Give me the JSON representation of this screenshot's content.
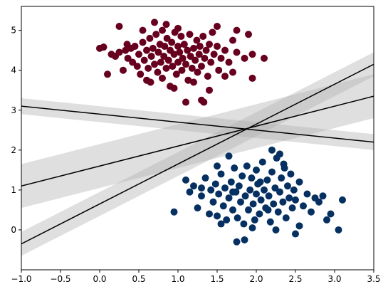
{
  "chart_data": {
    "type": "scatter",
    "title": "",
    "xlabel": "",
    "ylabel": "",
    "xlim": [
      -1.0,
      3.5
    ],
    "ylim": [
      -1.0,
      5.6
    ],
    "x_ticks": [
      -1.0,
      -0.5,
      0.0,
      0.5,
      1.0,
      1.5,
      2.0,
      2.5,
      3.0,
      3.5
    ],
    "x_tick_labels": [
      "−1.0",
      "−0.5",
      "0.0",
      "0.5",
      "1.0",
      "1.5",
      "2.0",
      "2.5",
      "3.0",
      "3.5"
    ],
    "y_ticks": [
      0,
      1,
      2,
      3,
      4,
      5
    ],
    "y_tick_labels": [
      "0",
      "1",
      "2",
      "3",
      "4",
      "5"
    ],
    "grid": false,
    "legend": "none",
    "colors": {
      "cluster_top": "#67001f",
      "cluster_bottom": "#053061",
      "line": "#000000",
      "margin_band": "#b0b0b0"
    },
    "series": [
      {
        "points": [
          [
            0.0,
            4.55
          ],
          [
            0.05,
            4.58
          ],
          [
            0.15,
            4.4
          ],
          [
            0.2,
            4.35
          ],
          [
            0.25,
            4.45
          ],
          [
            0.3,
            4.0
          ],
          [
            0.33,
            4.5
          ],
          [
            0.36,
            4.3
          ],
          [
            0.4,
            4.55
          ],
          [
            0.42,
            4.2
          ],
          [
            0.45,
            4.6
          ],
          [
            0.48,
            4.1
          ],
          [
            0.5,
            4.4
          ],
          [
            0.52,
            3.9
          ],
          [
            0.55,
            4.7
          ],
          [
            0.57,
            4.25
          ],
          [
            0.6,
            4.5
          ],
          [
            0.62,
            4.05
          ],
          [
            0.64,
            4.8
          ],
          [
            0.65,
            3.7
          ],
          [
            0.66,
            4.35
          ],
          [
            0.68,
            4.55
          ],
          [
            0.7,
            4.15
          ],
          [
            0.72,
            4.9
          ],
          [
            0.74,
            3.95
          ],
          [
            0.75,
            4.45
          ],
          [
            0.77,
            4.65
          ],
          [
            0.78,
            4.2
          ],
          [
            0.8,
            5.0
          ],
          [
            0.8,
            3.8
          ],
          [
            0.82,
            4.35
          ],
          [
            0.83,
            4.6
          ],
          [
            0.85,
            4.05
          ],
          [
            0.86,
            4.8
          ],
          [
            0.88,
            4.25
          ],
          [
            0.9,
            4.5
          ],
          [
            0.9,
            3.6
          ],
          [
            0.92,
            4.7
          ],
          [
            0.93,
            4.1
          ],
          [
            0.95,
            4.4
          ],
          [
            0.96,
            4.95
          ],
          [
            0.98,
            3.9
          ],
          [
            1.0,
            4.6
          ],
          [
            1.0,
            4.2
          ],
          [
            1.02,
            4.45
          ],
          [
            1.04,
            4.85
          ],
          [
            1.05,
            4.0
          ],
          [
            1.06,
            4.3
          ],
          [
            1.08,
            4.65
          ],
          [
            1.1,
            4.15
          ],
          [
            1.12,
            4.5
          ],
          [
            1.13,
            3.75
          ],
          [
            1.15,
            4.9
          ],
          [
            1.16,
            4.35
          ],
          [
            1.18,
            4.05
          ],
          [
            1.2,
            4.55
          ],
          [
            1.22,
            4.25
          ],
          [
            1.24,
            4.75
          ],
          [
            1.25,
            3.95
          ],
          [
            1.27,
            4.4
          ],
          [
            1.28,
            4.6
          ],
          [
            1.3,
            4.1
          ],
          [
            1.32,
            4.85
          ],
          [
            1.34,
            4.3
          ],
          [
            1.36,
            4.5
          ],
          [
            1.38,
            3.85
          ],
          [
            1.4,
            4.65
          ],
          [
            1.42,
            4.2
          ],
          [
            1.44,
            4.95
          ],
          [
            1.46,
            4.4
          ],
          [
            1.5,
            4.6
          ],
          [
            1.52,
            4.0
          ],
          [
            1.55,
            4.3
          ],
          [
            1.6,
            4.5
          ],
          [
            1.65,
            4.2
          ],
          [
            1.7,
            4.75
          ],
          [
            1.75,
            4.45
          ],
          [
            1.85,
            4.3
          ],
          [
            0.1,
            3.9
          ],
          [
            0.35,
            4.65
          ],
          [
            0.7,
            5.2
          ],
          [
            0.85,
            5.15
          ],
          [
            1.0,
            5.05
          ],
          [
            1.1,
            3.2
          ],
          [
            1.3,
            3.25
          ],
          [
            1.33,
            3.2
          ],
          [
            1.4,
            3.5
          ],
          [
            1.95,
            4.4
          ],
          [
            1.95,
            3.8
          ],
          [
            1.75,
            5.0
          ],
          [
            1.9,
            4.9
          ],
          [
            1.5,
            5.1
          ],
          [
            0.25,
            5.1
          ],
          [
            0.55,
            5.0
          ],
          [
            0.6,
            3.75
          ],
          [
            1.6,
            3.85
          ],
          [
            2.1,
            4.3
          ],
          [
            0.95,
            3.55
          ],
          [
            1.2,
            3.7
          ],
          [
            1.7,
            3.95
          ]
        ],
        "color": "#67001f"
      },
      {
        "points": [
          [
            0.95,
            0.45
          ],
          [
            1.1,
            1.25
          ],
          [
            1.15,
            0.95
          ],
          [
            1.2,
            1.1
          ],
          [
            1.25,
            0.55
          ],
          [
            1.3,
            0.85
          ],
          [
            1.35,
            1.3
          ],
          [
            1.4,
            0.4
          ],
          [
            1.42,
            1.0
          ],
          [
            1.45,
            0.7
          ],
          [
            1.48,
            1.15
          ],
          [
            1.5,
            0.35
          ],
          [
            1.52,
            0.9
          ],
          [
            1.55,
            1.4
          ],
          [
            1.58,
            0.6
          ],
          [
            1.6,
            1.05
          ],
          [
            1.62,
            0.25
          ],
          [
            1.65,
            0.8
          ],
          [
            1.68,
            1.2
          ],
          [
            1.7,
            0.5
          ],
          [
            1.72,
            1.55
          ],
          [
            1.74,
            0.95
          ],
          [
            1.76,
            0.3
          ],
          [
            1.78,
            1.1
          ],
          [
            1.8,
            0.7
          ],
          [
            1.82,
            1.35
          ],
          [
            1.84,
            0.15
          ],
          [
            1.86,
            0.85
          ],
          [
            1.88,
            1.6
          ],
          [
            1.9,
            0.5
          ],
          [
            1.92,
            1.0
          ],
          [
            1.94,
            1.3
          ],
          [
            1.96,
            0.65
          ],
          [
            1.98,
            0.25
          ],
          [
            2.0,
            0.9
          ],
          [
            2.0,
            1.5
          ],
          [
            2.02,
            1.15
          ],
          [
            2.04,
            0.4
          ],
          [
            2.06,
            0.75
          ],
          [
            2.08,
            1.7
          ],
          [
            2.1,
            1.0
          ],
          [
            2.12,
            0.55
          ],
          [
            2.14,
            1.25
          ],
          [
            2.16,
            0.85
          ],
          [
            2.18,
            0.2
          ],
          [
            2.2,
            1.45
          ],
          [
            2.22,
            0.65
          ],
          [
            2.24,
            1.05
          ],
          [
            2.26,
            1.8
          ],
          [
            2.28,
            0.45
          ],
          [
            2.3,
            0.95
          ],
          [
            2.32,
            1.3
          ],
          [
            2.34,
            0.7
          ],
          [
            2.36,
            1.55
          ],
          [
            2.38,
            0.3
          ],
          [
            2.4,
            1.1
          ],
          [
            2.42,
            0.8
          ],
          [
            2.44,
            1.4
          ],
          [
            2.46,
            0.55
          ],
          [
            2.48,
            1.0
          ],
          [
            2.5,
            0.75
          ],
          [
            2.55,
            1.2
          ],
          [
            2.6,
            0.6
          ],
          [
            2.65,
            0.9
          ],
          [
            2.7,
            0.45
          ],
          [
            2.75,
            0.8
          ],
          [
            2.8,
            0.7
          ],
          [
            2.85,
            0.85
          ],
          [
            1.5,
            1.6
          ],
          [
            2.2,
            2.0
          ],
          [
            1.85,
            -0.25
          ],
          [
            1.75,
            -0.3
          ],
          [
            2.25,
            0.0
          ],
          [
            2.55,
            0.1
          ],
          [
            2.95,
            0.4
          ],
          [
            3.05,
            0.0
          ],
          [
            3.1,
            0.75
          ],
          [
            2.9,
            0.25
          ],
          [
            1.3,
            1.05
          ],
          [
            1.65,
            1.85
          ],
          [
            2.35,
            1.65
          ],
          [
            1.95,
            0.05
          ],
          [
            2.5,
            -0.1
          ],
          [
            1.55,
            0.15
          ],
          [
            1.7,
            0.95
          ],
          [
            2.05,
            1.2
          ],
          [
            2.15,
            0.5
          ],
          [
            2.3,
            1.9
          ]
        ],
        "color": "#053061"
      }
    ],
    "lines": [
      {
        "x": [
          -1.0,
          3.5
        ],
        "y": [
          3.1,
          2.2
        ],
        "half_width": 0.2
      },
      {
        "x": [
          -1.0,
          3.5
        ],
        "y": [
          1.1,
          3.35
        ],
        "half_width": 0.55
      },
      {
        "x": [
          -1.0,
          3.5
        ],
        "y": [
          -0.35,
          4.15
        ],
        "half_width": 0.3
      }
    ]
  }
}
